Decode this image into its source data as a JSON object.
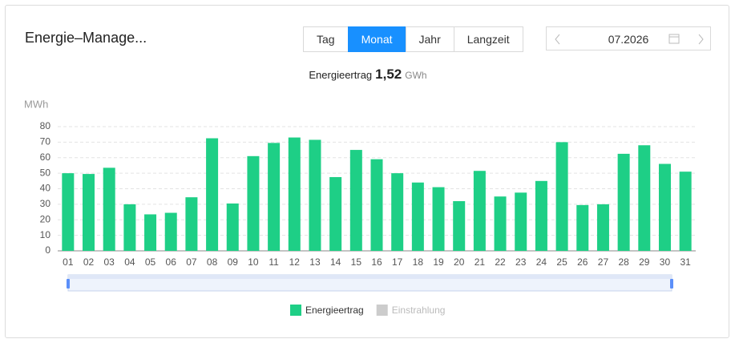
{
  "header": {
    "title": "Energie–Manage...",
    "buttons": [
      "Tag",
      "Monat",
      "Jahr",
      "Langzeit"
    ],
    "active": 1,
    "date": "07.2026"
  },
  "summary": {
    "label": "Energieertrag",
    "value": "1,52",
    "unit": "GWh"
  },
  "chart_data": {
    "type": "bar",
    "y_label": "MWh",
    "categories": [
      "01",
      "02",
      "03",
      "04",
      "05",
      "06",
      "07",
      "08",
      "09",
      "10",
      "11",
      "12",
      "13",
      "14",
      "15",
      "16",
      "17",
      "18",
      "19",
      "20",
      "21",
      "22",
      "23",
      "24",
      "25",
      "26",
      "27",
      "28",
      "29",
      "30",
      "31"
    ],
    "series": [
      {
        "name": "Energieertrag",
        "color": "#1ecf86",
        "values": [
          50,
          49.5,
          53.5,
          30,
          23.5,
          24.5,
          34.5,
          72.5,
          30.5,
          61,
          69.5,
          73,
          71.5,
          47.5,
          65,
          59,
          50,
          44,
          41,
          32,
          51.5,
          35,
          37.5,
          45,
          70,
          29.5,
          30,
          62.5,
          68,
          56,
          51
        ]
      },
      {
        "name": "Einstrahlung",
        "color": "#cccccc",
        "hidden": true
      }
    ],
    "ylim": [
      0,
      80
    ],
    "yticks": [
      0,
      10,
      20,
      30,
      40,
      50,
      60,
      70,
      80
    ],
    "grid": true
  }
}
